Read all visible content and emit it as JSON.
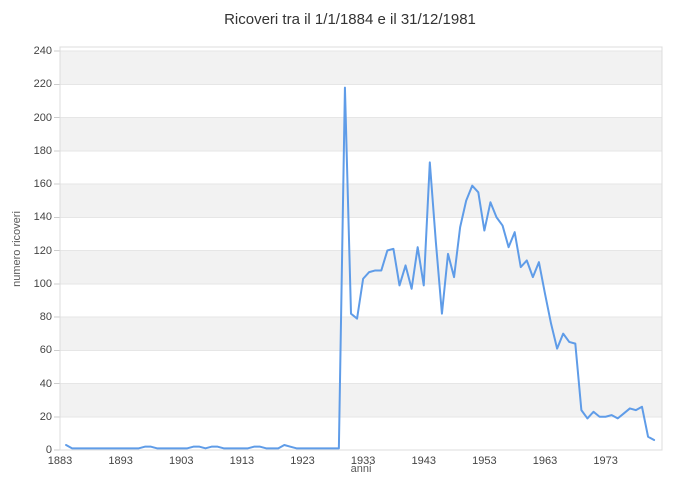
{
  "chart_data": {
    "type": "line",
    "title": "Ricoveri tra il 1/1/1884 e il 31/12/1981",
    "xlabel": "anni",
    "ylabel": "numero ricoveri",
    "x_ticks": [
      1883,
      1893,
      1903,
      1913,
      1923,
      1933,
      1943,
      1953,
      1963,
      1973
    ],
    "y_ticks": [
      0,
      20,
      40,
      60,
      80,
      100,
      120,
      140,
      160,
      180,
      200,
      220,
      240
    ],
    "xlim": [
      1883,
      1982.3
    ],
    "ylim": [
      0,
      240
    ],
    "grid": "horizontal",
    "background_bands": true,
    "legend": "none",
    "series": [
      {
        "name": "numero ricoveri",
        "x_start": 1884,
        "x_step": 1,
        "x_end": 1981,
        "values": [
          3,
          1,
          1,
          1,
          1,
          1,
          1,
          1,
          1,
          1,
          1,
          1,
          1,
          2,
          2,
          1,
          1,
          1,
          1,
          1,
          1,
          2,
          2,
          1,
          2,
          2,
          1,
          1,
          1,
          1,
          1,
          2,
          2,
          1,
          1,
          1,
          3,
          2,
          1,
          1,
          1,
          1,
          1,
          1,
          1,
          1,
          218,
          82,
          79,
          103,
          107,
          108,
          108,
          120,
          121,
          99,
          111,
          97,
          122,
          99,
          173,
          125,
          82,
          118,
          104,
          134,
          150,
          159,
          155,
          132,
          149,
          140,
          135,
          122,
          131,
          110,
          114,
          104,
          113,
          94,
          76,
          61,
          70,
          65,
          64,
          24,
          19,
          23,
          20,
          20,
          21,
          19,
          22,
          25,
          24,
          26,
          8,
          6
        ]
      }
    ],
    "colors": {
      "line": "#5f9ce8",
      "band_gray": "#f2f2f2",
      "band_white": "#ffffff",
      "gridline": "#e6e6e6",
      "tick_mark": "#cccccc",
      "plot_border": "#dcdcdc",
      "title_text": "#333333",
      "tick_text": "#444444",
      "axis_title_text": "#595959"
    }
  }
}
